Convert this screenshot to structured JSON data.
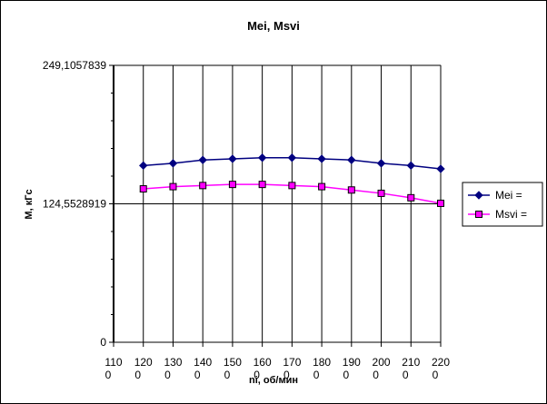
{
  "chart_data": {
    "type": "line",
    "title": "Mei, Msvi",
    "xlabel": "ni, об/мин",
    "ylabel": "M, кГс",
    "x_tick_labels": [
      [
        "110",
        "0"
      ],
      [
        "120",
        "0"
      ],
      [
        "130",
        "0"
      ],
      [
        "140",
        "0"
      ],
      [
        "150",
        "0"
      ],
      [
        "160",
        "0"
      ],
      [
        "170",
        "0"
      ],
      [
        "180",
        "0"
      ],
      [
        "190",
        "0"
      ],
      [
        "200",
        "0"
      ],
      [
        "210",
        "0"
      ],
      [
        "220",
        "0"
      ]
    ],
    "categories": [
      1100,
      1200,
      1300,
      1400,
      1500,
      1600,
      1700,
      1800,
      1900,
      2000,
      2100,
      2200
    ],
    "y_tick_labels": [
      "0",
      "124,5528919",
      "249,1057839"
    ],
    "ylim": [
      0,
      249.1057839
    ],
    "grid": {
      "vertical": true,
      "horizontal_at_major": true
    },
    "legend_position": "right",
    "series": [
      {
        "name": "Mei =",
        "color": "#000080",
        "marker": "diamond",
        "x": [
          1200,
          1300,
          1400,
          1500,
          1600,
          1700,
          1800,
          1900,
          2000,
          2100,
          2200
        ],
        "values": [
          159,
          161,
          164,
          165,
          166,
          166,
          165,
          164,
          161,
          159,
          156
        ]
      },
      {
        "name": "Msvi =",
        "color": "#FF00FF",
        "marker": "square",
        "x": [
          1200,
          1300,
          1400,
          1500,
          1600,
          1700,
          1800,
          1900,
          2000,
          2100,
          2200
        ],
        "values": [
          138,
          140,
          141,
          142,
          142,
          141,
          140,
          137,
          134,
          130,
          125
        ]
      }
    ]
  }
}
